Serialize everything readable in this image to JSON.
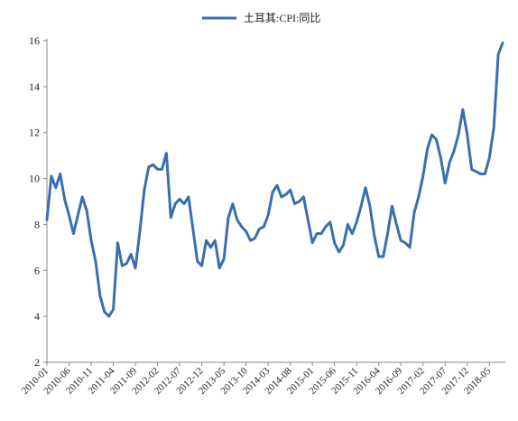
{
  "chart_data": {
    "type": "line",
    "legend": {
      "label": "土耳其:CPI:同比",
      "position": "top-center"
    },
    "ylim": [
      2,
      16
    ],
    "yticks": [
      "2",
      "4",
      "6",
      "8",
      "10",
      "12",
      "14",
      "16"
    ],
    "xticks": [
      "2010-01",
      "2010-06",
      "2010-11",
      "2011-04",
      "2011-09",
      "2012-02",
      "2012-07",
      "2012-12",
      "2013-05",
      "2013-10",
      "2014-03",
      "2014-08",
      "2015-01",
      "2015-06",
      "2015-11",
      "2016-04",
      "2016-09",
      "2017-02",
      "2017-07",
      "2017-12",
      "2018-05"
    ],
    "grid": false,
    "series": [
      {
        "name": "土耳其:CPI:同比",
        "color": "#3a6fae",
        "x": [
          "2010-01",
          "2010-02",
          "2010-03",
          "2010-04",
          "2010-05",
          "2010-06",
          "2010-07",
          "2010-08",
          "2010-09",
          "2010-10",
          "2010-11",
          "2010-12",
          "2011-01",
          "2011-02",
          "2011-03",
          "2011-04",
          "2011-05",
          "2011-06",
          "2011-07",
          "2011-08",
          "2011-09",
          "2011-10",
          "2011-11",
          "2011-12",
          "2012-01",
          "2012-02",
          "2012-03",
          "2012-04",
          "2012-05",
          "2012-06",
          "2012-07",
          "2012-08",
          "2012-09",
          "2012-10",
          "2012-11",
          "2012-12",
          "2013-01",
          "2013-02",
          "2013-03",
          "2013-04",
          "2013-05",
          "2013-06",
          "2013-07",
          "2013-08",
          "2013-09",
          "2013-10",
          "2013-11",
          "2013-12",
          "2014-01",
          "2014-02",
          "2014-03",
          "2014-04",
          "2014-05",
          "2014-06",
          "2014-07",
          "2014-08",
          "2014-09",
          "2014-10",
          "2014-11",
          "2014-12",
          "2015-01",
          "2015-02",
          "2015-03",
          "2015-04",
          "2015-05",
          "2015-06",
          "2015-07",
          "2015-08",
          "2015-09",
          "2015-10",
          "2015-11",
          "2015-12",
          "2016-01",
          "2016-02",
          "2016-03",
          "2016-04",
          "2016-05",
          "2016-06",
          "2016-07",
          "2016-08",
          "2016-09",
          "2016-10",
          "2016-11",
          "2016-12",
          "2017-01",
          "2017-02",
          "2017-03",
          "2017-04",
          "2017-05",
          "2017-06",
          "2017-07",
          "2017-08",
          "2017-09",
          "2017-10",
          "2017-11",
          "2017-12",
          "2018-01",
          "2018-02",
          "2018-03",
          "2018-04",
          "2018-05",
          "2018-06",
          "2018-07",
          "2018-08"
        ],
        "values": [
          8.2,
          10.1,
          9.6,
          10.2,
          9.1,
          8.4,
          7.6,
          8.4,
          9.2,
          8.6,
          7.3,
          6.4,
          4.9,
          4.2,
          4.0,
          4.3,
          7.2,
          6.2,
          6.3,
          6.7,
          6.1,
          7.7,
          9.5,
          10.5,
          10.6,
          10.4,
          10.4,
          11.1,
          8.3,
          8.9,
          9.1,
          8.9,
          9.2,
          7.8,
          6.4,
          6.2,
          7.3,
          7.0,
          7.3,
          6.1,
          6.5,
          8.3,
          8.9,
          8.2,
          7.9,
          7.7,
          7.3,
          7.4,
          7.8,
          7.9,
          8.4,
          9.4,
          9.7,
          9.2,
          9.3,
          9.5,
          8.9,
          9.0,
          9.2,
          8.2,
          7.2,
          7.6,
          7.6,
          7.9,
          8.1,
          7.2,
          6.8,
          7.1,
          8.0,
          7.6,
          8.1,
          8.8,
          9.6,
          8.8,
          7.5,
          6.6,
          6.6,
          7.6,
          8.8,
          8.0,
          7.3,
          7.2,
          7.0,
          8.5,
          9.2,
          10.1,
          11.3,
          11.9,
          11.7,
          10.9,
          9.8,
          10.7,
          11.2,
          11.9,
          13.0,
          11.9,
          10.4,
          10.3,
          10.2,
          10.2,
          10.9,
          12.2,
          15.4,
          15.9
        ]
      }
    ]
  }
}
